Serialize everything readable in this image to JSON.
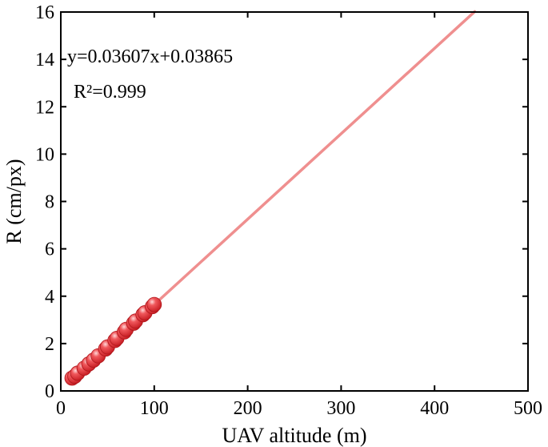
{
  "chart_data": {
    "type": "scatter",
    "xlabel": "UAV altitude (m)",
    "ylabel": "R (cm/px)",
    "xlim": [
      0,
      500
    ],
    "ylim": [
      0,
      16
    ],
    "x_ticks": [
      0,
      100,
      200,
      300,
      400,
      500
    ],
    "y_ticks": [
      0,
      2,
      4,
      6,
      8,
      10,
      12,
      14,
      16
    ],
    "grid": false,
    "legend": "none",
    "series": [
      {
        "type": "scatter",
        "marker_color": "#e8343a",
        "x": [
          12,
          15,
          18,
          25,
          30,
          35,
          40,
          48,
          50,
          58,
          60,
          68,
          70,
          78,
          80,
          88,
          90,
          98,
          100
        ],
        "y": [
          0.54,
          0.62,
          0.75,
          0.96,
          1.14,
          1.3,
          1.48,
          1.77,
          1.86,
          2.13,
          2.22,
          2.49,
          2.6,
          2.86,
          2.95,
          3.22,
          3.3,
          3.56,
          3.65
        ]
      },
      {
        "type": "line",
        "line_color": "#ef8f8f",
        "slope": 0.03607,
        "intercept": 0.03865,
        "x_range": [
          10,
          443
        ]
      }
    ],
    "annotations": {
      "equation": "y=0.03607x+0.03865",
      "r_squared": "R²=0.999"
    }
  }
}
